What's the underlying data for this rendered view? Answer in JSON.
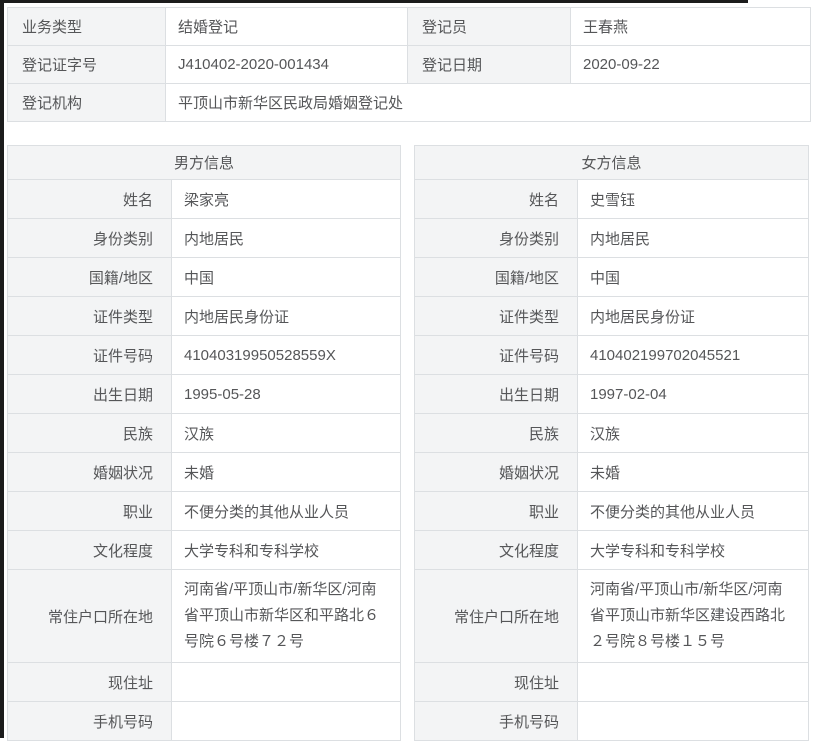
{
  "registration": {
    "row1": {
      "label1": "业务类型",
      "value1": "结婚登记",
      "label2": "登记员",
      "value2": "王春燕"
    },
    "row2": {
      "label1": "登记证字号",
      "value1": "J410402-2020-001434",
      "label2": "登记日期",
      "value2": "2020-09-22"
    },
    "row3": {
      "label1": "登记机构",
      "value1": "平顶山市新华区民政局婚姻登记处"
    }
  },
  "male": {
    "title": "男方信息",
    "fields": [
      {
        "label": "姓名",
        "value": "梁家亮"
      },
      {
        "label": "身份类别",
        "value": "内地居民"
      },
      {
        "label": "国籍/地区",
        "value": "中国"
      },
      {
        "label": "证件类型",
        "value": "内地居民身份证"
      },
      {
        "label": "证件号码",
        "value": "41040319950528559X"
      },
      {
        "label": "出生日期",
        "value": "1995-05-28"
      },
      {
        "label": "民族",
        "value": "汉族"
      },
      {
        "label": "婚姻状况",
        "value": "未婚"
      },
      {
        "label": "职业",
        "value": "不便分类的其他从业人员"
      },
      {
        "label": "文化程度",
        "value": "大学专科和专科学校"
      },
      {
        "label": "常住户口所在地",
        "value": "河南省/平顶山市/新华区/河南省平顶山市新华区和平路北６号院６号楼７２号"
      },
      {
        "label": "现住址",
        "value": ""
      },
      {
        "label": "手机号码",
        "value": ""
      }
    ]
  },
  "female": {
    "title": "女方信息",
    "fields": [
      {
        "label": "姓名",
        "value": "史雪钰"
      },
      {
        "label": "身份类别",
        "value": "内地居民"
      },
      {
        "label": "国籍/地区",
        "value": "中国"
      },
      {
        "label": "证件类型",
        "value": "内地居民身份证"
      },
      {
        "label": "证件号码",
        "value": "410402199702045521"
      },
      {
        "label": "出生日期",
        "value": "1997-02-04"
      },
      {
        "label": "民族",
        "value": "汉族"
      },
      {
        "label": "婚姻状况",
        "value": "未婚"
      },
      {
        "label": "职业",
        "value": "不便分类的其他从业人员"
      },
      {
        "label": "文化程度",
        "value": "大学专科和专科学校"
      },
      {
        "label": "常住户口所在地",
        "value": "河南省/平顶山市/新华区/河南省平顶山市新华区建设西路北２号院８号楼１５号"
      },
      {
        "label": "现住址",
        "value": ""
      },
      {
        "label": "手机号码",
        "value": ""
      }
    ]
  },
  "colors": {
    "label_cell_bg": "#f3f4f5",
    "border": "#dcdfe2",
    "text": "#555658",
    "scan_edge": "#1c1c1c"
  }
}
